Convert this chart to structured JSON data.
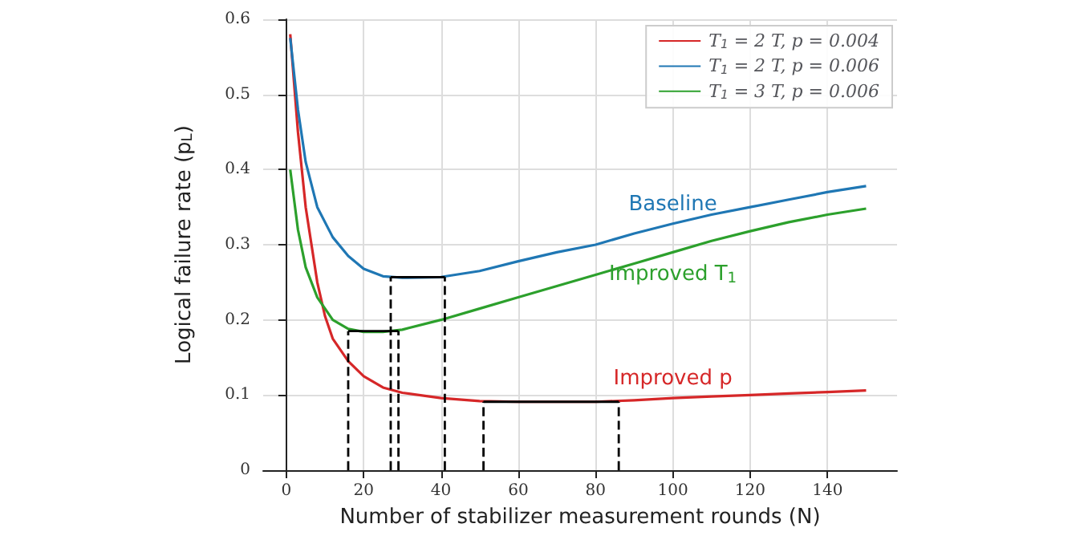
{
  "chart_data": {
    "type": "line",
    "xlabel": "Number of stabilizer measurement rounds (N)",
    "ylabel": "Logical failure rate (p$_{L}$)",
    "xlim": [
      -6,
      158
    ],
    "xticks": [
      0,
      20,
      40,
      60,
      80,
      100,
      120,
      140
    ],
    "ylim": [
      0,
      0.6
    ],
    "yticks": [
      0,
      0.1,
      0.2,
      0.3,
      0.4,
      0.5,
      0.6
    ],
    "grid": true,
    "legend": "top right",
    "marker": "none",
    "line_style": "solid",
    "series": [
      {
        "name": "T$_{1}$ = 2 T, p = 0.004",
        "color": "#d62728",
        "x": [
          1,
          3,
          5,
          8,
          10,
          12,
          16,
          20,
          25,
          30,
          40,
          50,
          60,
          70,
          80,
          90,
          100,
          110,
          120,
          130,
          140,
          150
        ],
        "values": [
          0.58,
          0.45,
          0.35,
          0.25,
          0.205,
          0.175,
          0.145,
          0.125,
          0.11,
          0.103,
          0.096,
          0.092,
          0.091,
          0.091,
          0.091,
          0.093,
          0.096,
          0.098,
          0.1,
          0.102,
          0.104,
          0.106
        ]
      },
      {
        "name": "T$_{1}$ = 2 T, p = 0.006",
        "color": "#1f77b4",
        "x": [
          1,
          3,
          5,
          8,
          12,
          16,
          20,
          25,
          30,
          40,
          50,
          60,
          70,
          80,
          90,
          100,
          110,
          120,
          130,
          140,
          150
        ],
        "values": [
          0.575,
          0.48,
          0.41,
          0.35,
          0.31,
          0.285,
          0.268,
          0.258,
          0.256,
          0.257,
          0.265,
          0.278,
          0.29,
          0.3,
          0.315,
          0.328,
          0.34,
          0.35,
          0.36,
          0.37,
          0.378
        ]
      },
      {
        "name": "T$_{1}$ = 3 T, p = 0.006",
        "color": "#2ca02c",
        "x": [
          1,
          3,
          5,
          8,
          12,
          16,
          20,
          25,
          30,
          40,
          50,
          60,
          70,
          80,
          90,
          100,
          110,
          120,
          130,
          140,
          150
        ],
        "values": [
          0.4,
          0.32,
          0.27,
          0.23,
          0.2,
          0.188,
          0.184,
          0.184,
          0.187,
          0.2,
          0.215,
          0.23,
          0.245,
          0.26,
          0.275,
          0.29,
          0.305,
          0.318,
          0.33,
          0.34,
          0.348
        ]
      },
      {
        "color": "#000000",
        "x": [
          16,
          29
        ],
        "values": [
          0.185,
          0.185
        ]
      },
      {
        "color": "#000000",
        "x": [
          27,
          41
        ],
        "values": [
          0.257,
          0.257
        ]
      },
      {
        "color": "#000000",
        "x": [
          51,
          86
        ],
        "values": [
          0.091,
          0.091
        ]
      },
      {
        "color": "#000000",
        "line_style": "dashed",
        "x": [
          16,
          16
        ],
        "values": [
          0,
          0.185
        ]
      },
      {
        "color": "#000000",
        "line_style": "dashed",
        "x": [
          29,
          29
        ],
        "values": [
          0,
          0.185
        ]
      },
      {
        "color": "#000000",
        "line_style": "dashed",
        "x": [
          27,
          27
        ],
        "values": [
          0,
          0.257
        ]
      },
      {
        "color": "#000000",
        "line_style": "dashed",
        "x": [
          41,
          41
        ],
        "values": [
          0,
          0.257
        ]
      },
      {
        "color": "#000000",
        "line_style": "dashed",
        "x": [
          51,
          51
        ],
        "values": [
          0,
          0.091
        ]
      },
      {
        "color": "#000000",
        "line_style": "dashed",
        "x": [
          86,
          86
        ],
        "values": [
          0,
          0.091
        ]
      }
    ],
    "annotations": [
      "Improved p",
      "Baseline",
      "Improved T$_{1}$"
    ]
  }
}
